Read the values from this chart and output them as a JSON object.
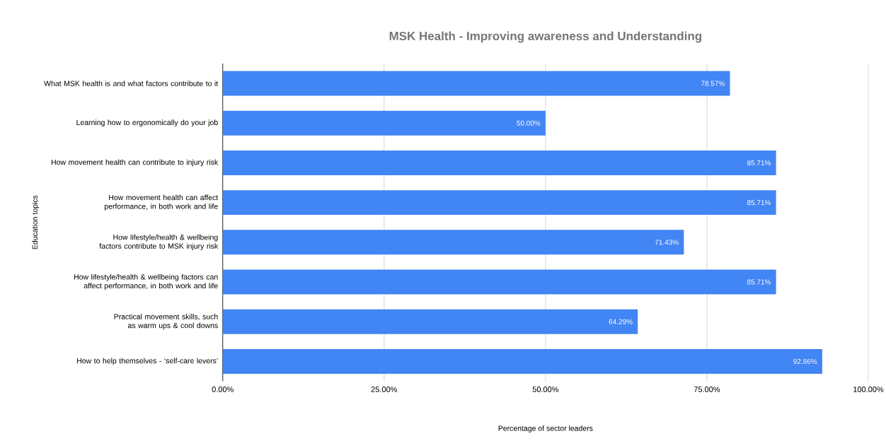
{
  "chart_data": {
    "type": "bar",
    "orientation": "horizontal",
    "title": "MSK Health - Improving awareness and Understanding",
    "xlabel": "Percentage of sector leaders",
    "ylabel": "Education topics",
    "categories": [
      "What MSK health is and what factors contribute to it",
      "Learning how to ergonomically do your job",
      "How movement health can contribute to injury risk",
      "How movement health can affect performance, in both work and life",
      "How lifestyle/health & wellbeing factors contribute to MSK injury risk",
      "How lifestyle/health & wellbeing factors can affect performance, in both work and life",
      "Practical movement skills, such as warm ups & cool downs",
      "How to help themselves - ‘self-care levers’"
    ],
    "values": [
      78.57,
      50.0,
      85.71,
      85.71,
      71.43,
      85.71,
      64.29,
      92.86
    ],
    "value_labels": [
      "78.57%",
      "50.00%",
      "85.71%",
      "85.71%",
      "71.43%",
      "85.71%",
      "64.29%",
      "92.86%"
    ],
    "color": "#4285f4",
    "xlim": [
      0,
      100
    ],
    "xticks": [
      {
        "value": 0,
        "label": "0.00%"
      },
      {
        "value": 25,
        "label": "25.00%"
      },
      {
        "value": 50,
        "label": "50.00%"
      },
      {
        "value": 75,
        "label": "75.00%"
      },
      {
        "value": 100,
        "label": "100.00%"
      }
    ],
    "grid": "x"
  }
}
